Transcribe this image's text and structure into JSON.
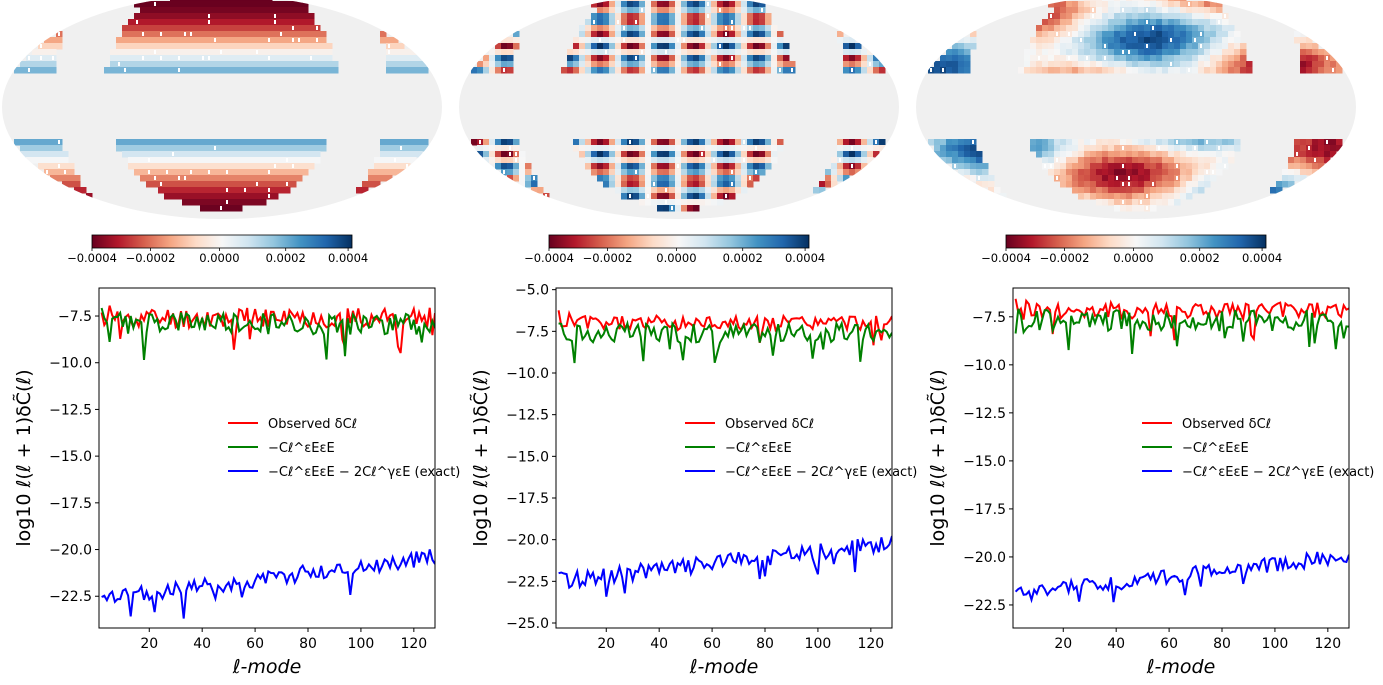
{
  "colorbar": {
    "ticks": [
      "−0.0004",
      "−0.0002",
      "0.0000",
      "0.0002",
      "0.0004"
    ],
    "cmap": [
      "#67001f",
      "#b2182b",
      "#d6604d",
      "#f4a582",
      "#fddbc7",
      "#f7f7f7",
      "#d1e5f0",
      "#92c5de",
      "#4393c3",
      "#2166ac",
      "#053061"
    ]
  },
  "labels": {
    "xlabel": "ℓ-mode",
    "ylabel": "log10 ℓ(ℓ + 1)δC̃(ℓ)",
    "legend": [
      "Observed δCℓ",
      "−Cℓ^εEεE",
      "−Cℓ^εEεE − 2Cℓ^γεE (exact)"
    ]
  },
  "maps": [
    {
      "pattern": "zonal"
    },
    {
      "pattern": "checker"
    },
    {
      "pattern": "blobs"
    }
  ],
  "chart_data": [
    {
      "type": "line",
      "xlabel": "ℓ-mode",
      "ylabel": "log10 ℓ(ℓ + 1)δC̃(ℓ)",
      "xlim": [
        1,
        128
      ],
      "ylim": [
        -24.2,
        -6.0
      ],
      "xticks": [
        20,
        40,
        60,
        80,
        100,
        120
      ],
      "yticks": [
        -22.5,
        -20.0,
        -17.5,
        -15.0,
        -12.5,
        -10.0,
        -7.5
      ],
      "legend_position": "center-right",
      "series": [
        {
          "name": "Observed δCℓ",
          "color": "#ff0000",
          "base": -7.6,
          "slope": 0.0,
          "noise": 0.55,
          "seed": 11
        },
        {
          "name": "−Cℓ^εEεE",
          "color": "#008000",
          "base": -7.9,
          "slope": 0.0,
          "noise": 0.6,
          "seed": 23
        },
        {
          "name": "−Cℓ^εEεE − 2Cℓ^γεE (exact)",
          "color": "#0000ff",
          "base": -22.7,
          "slope": 0.018,
          "noise": 0.45,
          "seed": 37
        }
      ]
    },
    {
      "type": "line",
      "xlabel": "ℓ-mode",
      "ylabel": "log10 ℓ(ℓ + 1)δC̃(ℓ)",
      "xlim": [
        1,
        128
      ],
      "ylim": [
        -25.3,
        -4.9
      ],
      "xticks": [
        20,
        40,
        60,
        80,
        100,
        120
      ],
      "yticks": [
        -25.0,
        -22.5,
        -20.0,
        -17.5,
        -15.0,
        -12.5,
        -10.0,
        -7.5,
        -5.0
      ],
      "legend_position": "center-right",
      "series": [
        {
          "name": "Observed δCℓ",
          "color": "#ff0000",
          "base": -7.0,
          "slope": 0.0,
          "noise": 0.45,
          "seed": 5
        },
        {
          "name": "−Cℓ^εEεE",
          "color": "#008000",
          "base": -7.6,
          "slope": 0.0,
          "noise": 0.6,
          "seed": 17
        },
        {
          "name": "−Cℓ^εEεE − 2Cℓ^γεE (exact)",
          "color": "#0000ff",
          "base": -22.5,
          "slope": 0.018,
          "noise": 0.5,
          "seed": 29
        }
      ]
    },
    {
      "type": "line",
      "xlabel": "ℓ-mode",
      "ylabel": "log10 ℓ(ℓ + 1)δC̃(ℓ)",
      "xlim": [
        1,
        128
      ],
      "ylim": [
        -23.7,
        -6.0
      ],
      "xticks": [
        20,
        40,
        60,
        80,
        100,
        120
      ],
      "yticks": [
        -22.5,
        -20.0,
        -17.5,
        -15.0,
        -12.5,
        -10.0,
        -7.5
      ],
      "legend_position": "center-right",
      "series": [
        {
          "name": "Observed δCℓ",
          "color": "#ff0000",
          "base": -7.2,
          "slope": 0.0,
          "noise": 0.45,
          "seed": 41
        },
        {
          "name": "−Cℓ^εEεE",
          "color": "#008000",
          "base": -7.7,
          "slope": 0.0,
          "noise": 0.55,
          "seed": 53
        },
        {
          "name": "−Cℓ^εEεE − 2Cℓ^γεE (exact)",
          "color": "#0000ff",
          "base": -22.0,
          "slope": 0.016,
          "noise": 0.4,
          "seed": 61
        }
      ]
    }
  ]
}
